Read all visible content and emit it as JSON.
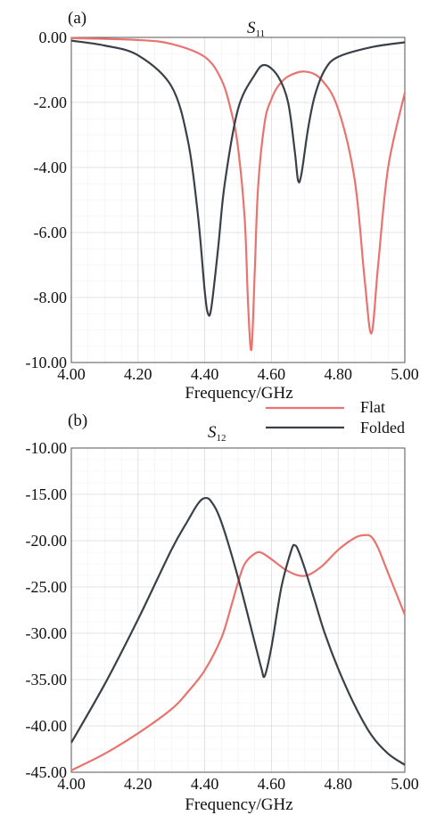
{
  "chart_data": [
    {
      "type": "line",
      "panel_label": "(a)",
      "title_main": "S",
      "title_sub": "11",
      "xlabel": "Frequency/GHz",
      "ylabel": "",
      "xlim": [
        4.0,
        5.0
      ],
      "ylim": [
        -10.0,
        0.0
      ],
      "x_ticks": [
        "4.00",
        "4.20",
        "4.40",
        "4.60",
        "4.80",
        "5.00"
      ],
      "y_ticks": [
        "0.00",
        "-2.00",
        "-4.00",
        "-6.00",
        "-8.00",
        "-10.00"
      ],
      "grid": true,
      "series": [
        {
          "name": "Flat",
          "color": "#e8736f",
          "x": [
            4.0,
            4.2,
            4.3,
            4.4,
            4.45,
            4.48,
            4.5,
            4.52,
            4.53,
            4.54,
            4.55,
            4.56,
            4.58,
            4.6,
            4.62,
            4.65,
            4.7,
            4.75,
            4.8,
            4.85,
            4.88,
            4.9,
            4.92,
            4.95,
            5.0
          ],
          "y": [
            -0.02,
            -0.08,
            -0.2,
            -0.6,
            -1.3,
            -2.3,
            -3.4,
            -5.6,
            -8.2,
            -9.6,
            -7.2,
            -4.6,
            -2.6,
            -1.9,
            -1.5,
            -1.2,
            -1.05,
            -1.3,
            -2.2,
            -4.4,
            -7.5,
            -9.1,
            -7.0,
            -4.0,
            -1.7
          ]
        },
        {
          "name": "Folded",
          "color": "#3a4048",
          "x": [
            4.0,
            4.1,
            4.2,
            4.3,
            4.35,
            4.38,
            4.4,
            4.41,
            4.42,
            4.44,
            4.46,
            4.5,
            4.55,
            4.58,
            4.62,
            4.65,
            4.67,
            4.68,
            4.69,
            4.71,
            4.73,
            4.76,
            4.8,
            4.9,
            5.0
          ],
          "y": [
            -0.1,
            -0.25,
            -0.55,
            -1.5,
            -3.2,
            -5.5,
            -7.8,
            -8.5,
            -8.3,
            -6.5,
            -4.5,
            -2.2,
            -1.15,
            -0.85,
            -1.2,
            -2.0,
            -3.5,
            -4.4,
            -4.2,
            -2.8,
            -1.8,
            -1.0,
            -0.6,
            -0.3,
            -0.15
          ]
        }
      ]
    },
    {
      "type": "line",
      "panel_label": "(b)",
      "title_main": "S",
      "title_sub": "12",
      "xlabel": "Frequency/GHz",
      "ylabel": "",
      "xlim": [
        4.0,
        5.0
      ],
      "ylim": [
        -45.0,
        -10.0
      ],
      "x_ticks": [
        "4.00",
        "4.20",
        "4.40",
        "4.60",
        "4.80",
        "5.00"
      ],
      "y_ticks": [
        "-10.00",
        "-15.00",
        "-20.00",
        "-25.00",
        "-30.00",
        "-35.00",
        "-40.00",
        "-45.00"
      ],
      "grid": true,
      "series": [
        {
          "name": "Flat",
          "color": "#e8736f",
          "x": [
            4.0,
            4.1,
            4.2,
            4.3,
            4.35,
            4.4,
            4.45,
            4.48,
            4.5,
            4.52,
            4.55,
            4.57,
            4.6,
            4.65,
            4.7,
            4.75,
            4.8,
            4.85,
            4.88,
            4.9,
            4.92,
            4.95,
            5.0
          ],
          "y": [
            -44.8,
            -43.0,
            -40.8,
            -38.2,
            -36.3,
            -34.0,
            -30.5,
            -27.0,
            -24.5,
            -22.5,
            -21.4,
            -21.3,
            -22.0,
            -23.3,
            -23.8,
            -22.8,
            -21.0,
            -19.7,
            -19.4,
            -19.6,
            -20.8,
            -23.5,
            -28.0
          ]
        },
        {
          "name": "Folded",
          "color": "#3a4048",
          "x": [
            4.0,
            4.1,
            4.2,
            4.3,
            4.35,
            4.38,
            4.4,
            4.42,
            4.45,
            4.5,
            4.55,
            4.57,
            4.58,
            4.6,
            4.63,
            4.66,
            4.67,
            4.68,
            4.7,
            4.73,
            4.76,
            4.8,
            4.85,
            4.9,
            4.95,
            5.0
          ],
          "y": [
            -41.8,
            -35.5,
            -28.5,
            -21.0,
            -17.8,
            -16.0,
            -15.4,
            -15.8,
            -18.0,
            -24.0,
            -31.0,
            -33.8,
            -34.6,
            -31.5,
            -25.0,
            -21.0,
            -20.5,
            -21.0,
            -23.0,
            -26.5,
            -30.0,
            -33.8,
            -37.8,
            -41.0,
            -43.0,
            -44.2
          ]
        }
      ]
    }
  ],
  "legend": {
    "entries": [
      {
        "label": "Flat",
        "color": "#e8736f"
      },
      {
        "label": "Folded",
        "color": "#3a4048"
      }
    ]
  }
}
